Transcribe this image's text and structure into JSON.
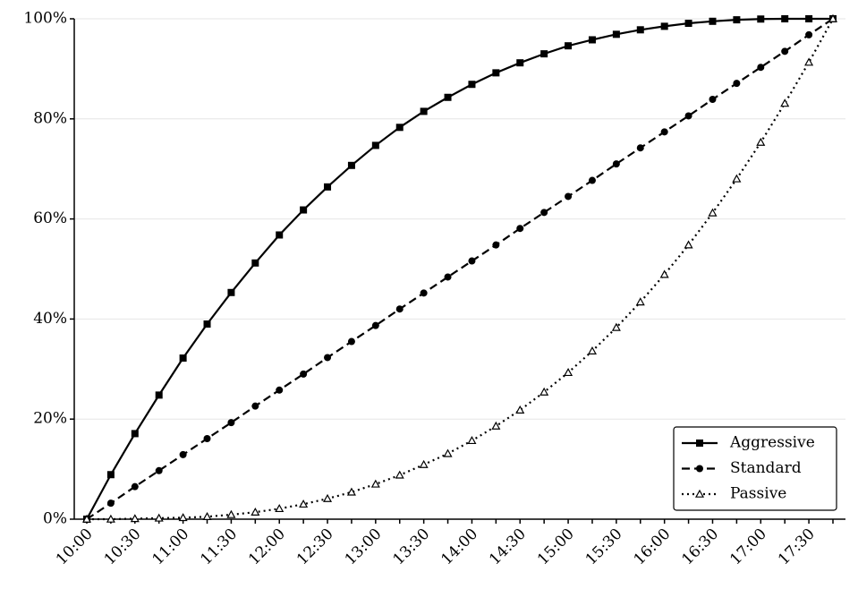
{
  "chart_data": {
    "type": "line",
    "categories": [
      "10:00",
      null,
      "10:30",
      null,
      "11:00",
      null,
      "11:30",
      null,
      "12:00",
      null,
      "12:30",
      null,
      "13:00",
      null,
      "13:30",
      null,
      "14:00",
      null,
      "14:30",
      null,
      "15:00",
      null,
      "15:30",
      null,
      "16:00",
      null,
      "16:30",
      null,
      "17:00",
      null,
      "17:30",
      null
    ],
    "series": [
      {
        "name": "Aggressive",
        "color": "#000000",
        "marker": "square",
        "linestyle": "solid",
        "values": [
          0,
          8.9,
          17.1,
          24.8,
          32.2,
          39.0,
          45.3,
          51.2,
          56.8,
          61.8,
          66.4,
          70.7,
          74.7,
          78.3,
          81.5,
          84.3,
          86.9,
          89.2,
          91.2,
          93.0,
          94.6,
          95.8,
          96.9,
          97.8,
          98.5,
          99.1,
          99.5,
          99.8,
          99.95,
          100,
          100,
          100
        ]
      },
      {
        "name": "Standard",
        "color": "#000000",
        "marker": "circle",
        "linestyle": "dashed",
        "values": [
          0,
          3.2,
          6.5,
          9.7,
          12.9,
          16.1,
          19.3,
          22.6,
          25.8,
          29.0,
          32.3,
          35.5,
          38.7,
          42.0,
          45.2,
          48.4,
          51.6,
          54.8,
          58.1,
          61.3,
          64.5,
          67.7,
          71.0,
          74.2,
          77.4,
          80.6,
          83.9,
          87.1,
          90.3,
          93.5,
          96.8,
          100
        ]
      },
      {
        "name": "Passive",
        "color": "#000000",
        "marker": "triangle-open",
        "linestyle": "dotted",
        "values": [
          0,
          0,
          0.1,
          0.2,
          0.3,
          0.5,
          0.9,
          1.4,
          2.1,
          3.0,
          4.1,
          5.4,
          7.0,
          8.8,
          10.9,
          13.1,
          15.7,
          18.6,
          21.8,
          25.4,
          29.3,
          33.6,
          38.3,
          43.4,
          48.9,
          54.8,
          61.2,
          68.0,
          75.3,
          83.1,
          91.3,
          100
        ]
      }
    ],
    "ylim": [
      0,
      100
    ],
    "yticks": [
      {
        "value": 0,
        "label": "0%"
      },
      {
        "value": 20,
        "label": "20%"
      },
      {
        "value": 40,
        "label": "40%"
      },
      {
        "value": 60,
        "label": "60%"
      },
      {
        "value": 80,
        "label": "80%"
      },
      {
        "value": 100,
        "label": "100%"
      }
    ],
    "grid": true,
    "legend": "lower right"
  }
}
